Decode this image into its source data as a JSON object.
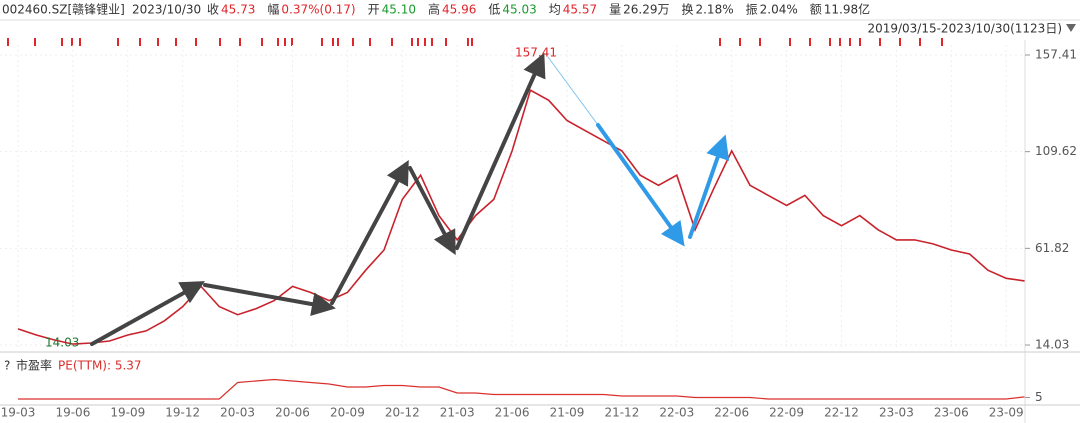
{
  "header": {
    "code": "002460.SZ[赣锋锂业]",
    "date": "2023/10/30",
    "fields": [
      {
        "label": "收",
        "value": "45.73",
        "color": "#e0262b"
      },
      {
        "label": "幅",
        "value": "0.37%(0.17)",
        "color": "#e0262b"
      },
      {
        "label": "开",
        "value": "45.10",
        "color": "#1a9a2c"
      },
      {
        "label": "高",
        "value": "45.96",
        "color": "#e0262b"
      },
      {
        "label": "低",
        "value": "45.03",
        "color": "#1a9a2c"
      },
      {
        "label": "均",
        "value": "45.57",
        "color": "#e0262b"
      },
      {
        "label": "量",
        "value": "26.29万",
        "color": "#333333"
      },
      {
        "label": "换",
        "value": "2.18%",
        "color": "#333333"
      },
      {
        "label": "振",
        "value": "2.04%",
        "color": "#333333"
      },
      {
        "label": "额",
        "value": "11.98亿",
        "color": "#333333"
      }
    ],
    "range": "2019/03/15-2023/10/30(1123日)"
  },
  "chart_data": [
    {
      "type": "line",
      "categories": [
        "19-03",
        null,
        null,
        "19-06",
        null,
        null,
        "19-09",
        null,
        null,
        "19-12",
        null,
        null,
        "20-03",
        null,
        null,
        "20-06",
        null,
        null,
        "20-09",
        null,
        null,
        "20-12",
        null,
        null,
        "21-03",
        null,
        null,
        "21-06",
        null,
        null,
        "21-09",
        null,
        null,
        "21-12",
        null,
        null,
        "22-03",
        null,
        null,
        "22-06",
        null,
        null,
        "22-09",
        null,
        null,
        "22-12",
        null,
        null,
        "23-03",
        null,
        null,
        "23-06",
        null,
        null,
        "23-09",
        null
      ],
      "series": [
        {
          "color": "#c8232c",
          "values": [
            22,
            19,
            16.5,
            14.5,
            15,
            16,
            19,
            21,
            26,
            33,
            43,
            33,
            29,
            32,
            36,
            43,
            40,
            36,
            40,
            51,
            61,
            86,
            98,
            78,
            66,
            78,
            86,
            110,
            140,
            135,
            125,
            120,
            115,
            110,
            98,
            93,
            98,
            71,
            91,
            110,
            93,
            88,
            83,
            88,
            78,
            73,
            78,
            71,
            66,
            66,
            64,
            61,
            59,
            51,
            47,
            45.73
          ]
        }
      ],
      "ylim": [
        11.56,
        162.35
      ],
      "yticks": [
        14.03,
        61.82,
        109.62,
        157.41
      ],
      "grid": true,
      "annotations": [
        {
          "value": 157.41,
          "label": "157.41",
          "color": "#e0262b"
        },
        {
          "value": 14.03,
          "label": "14.03",
          "color": "#1a7a2c"
        }
      ]
    },
    {
      "type": "line",
      "help": "?",
      "title": "市盈率",
      "series": [
        {
          "name": "PE(TTM): 5.37",
          "color": "#d9302c",
          "values": [
            4,
            4,
            4,
            4,
            4,
            4,
            4,
            4,
            4,
            4,
            4,
            4,
            15,
            16,
            17,
            16,
            15,
            14,
            12,
            12,
            13,
            13,
            12,
            12,
            8,
            8,
            7,
            7,
            7,
            7,
            7,
            7,
            7,
            6,
            6,
            6,
            6,
            5,
            5,
            5,
            5,
            4,
            4,
            4,
            4,
            4,
            4,
            4,
            4,
            4,
            4,
            4,
            4,
            4,
            4,
            5.37
          ]
        }
      ],
      "ylim": [
        0,
        30
      ],
      "yticks": [
        5
      ]
    }
  ]
}
